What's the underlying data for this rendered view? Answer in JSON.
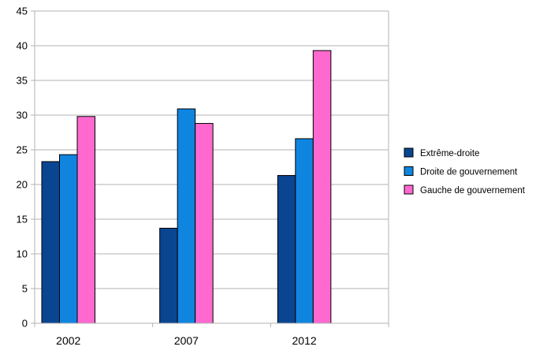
{
  "chart_data": {
    "type": "bar",
    "categories": [
      "2002",
      "2007",
      "2012"
    ],
    "series": [
      {
        "name": "Extrême-droite",
        "color": "#0a4591",
        "values": [
          23.3,
          13.7,
          21.3
        ]
      },
      {
        "name": "Droite de gouvernement",
        "color": "#0f85e0",
        "values": [
          24.3,
          30.9,
          26.6
        ]
      },
      {
        "name": "Gauche de gouvernement",
        "color": "#ff69cf",
        "values": [
          29.8,
          28.8,
          39.3
        ]
      }
    ],
    "ylim": [
      0,
      45
    ],
    "y_ticks": [
      0,
      5,
      10,
      15,
      20,
      25,
      30,
      35,
      40,
      45
    ],
    "grid": true,
    "legend_position": "right",
    "title": "",
    "xlabel": "",
    "ylabel": ""
  }
}
